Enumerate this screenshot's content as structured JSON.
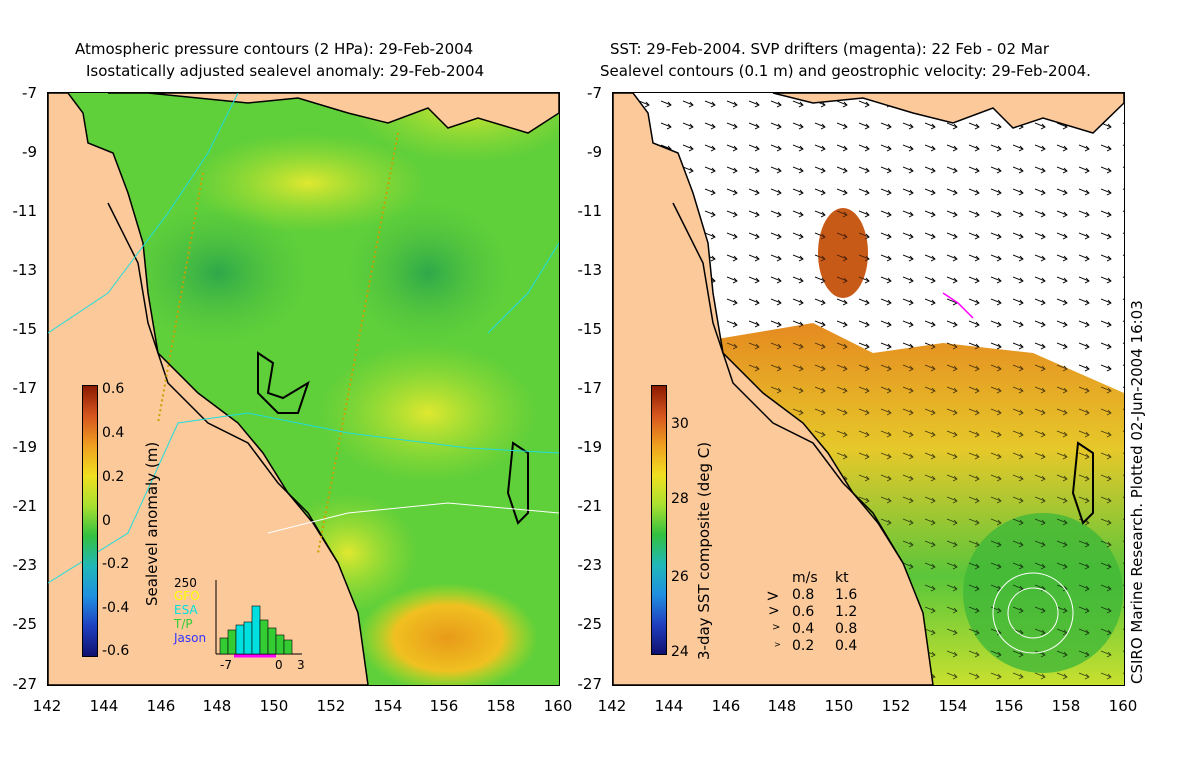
{
  "left": {
    "title_line1": "Atmospheric pressure contours (2 HPa): 29-Feb-2004",
    "title_line2": "Isostatically adjusted sealevel anomaly: 29-Feb-2004",
    "colorbar_label": "Sealevel anomaly (m)",
    "colorbar_ticks": [
      "0.6",
      "0.4",
      "0.2",
      "0",
      "-0.2",
      "-0.4",
      "-0.6"
    ],
    "inset": {
      "ymax_label": "250",
      "legend": [
        {
          "name": "GFO",
          "color": "#ffff00"
        },
        {
          "name": "ESA",
          "color": "#00e0e0"
        },
        {
          "name": "T/P",
          "color": "#33cc33"
        },
        {
          "name": "Jason",
          "color": "#3333ff"
        }
      ],
      "x_ticks": [
        "-7",
        "0",
        "3"
      ]
    }
  },
  "right": {
    "title_line1": "SST: 29-Feb-2004. SVP drifters (magenta): 22 Feb - 02 Mar",
    "title_line2": "Sealevel contours (0.1 m) and geostrophic velocity: 29-Feb-2004.",
    "colorbar_label": "3-day SST composite (deg C)",
    "colorbar_ticks": [
      "30",
      "28",
      "26",
      "24"
    ],
    "speed_legend": {
      "header_ms": "m/s",
      "header_kt": "kt",
      "rows": [
        {
          "ms": "0.8",
          "kt": "1.6"
        },
        {
          "ms": "0.6",
          "kt": "1.2"
        },
        {
          "ms": "0.4",
          "kt": "0.8"
        },
        {
          "ms": "0.2",
          "kt": "0.4"
        }
      ]
    },
    "credit": "CSIRO Marine Research. Plotted 02-Jun-2004 16:03"
  },
  "axes": {
    "y_ticks": [
      "-7",
      "-9",
      "-11",
      "-13",
      "-15",
      "-17",
      "-19",
      "-21",
      "-23",
      "-25",
      "-27"
    ],
    "x_ticks": [
      "142",
      "144",
      "146",
      "148",
      "150",
      "152",
      "154",
      "156",
      "158",
      "160"
    ],
    "lon_range": [
      142,
      160
    ],
    "lat_range": [
      -27,
      -7
    ]
  },
  "colors": {
    "land": "#fbc99a",
    "sea_green": "#5fcf3a",
    "coast": "#000000",
    "pressure_contour": "#22dddd"
  }
}
